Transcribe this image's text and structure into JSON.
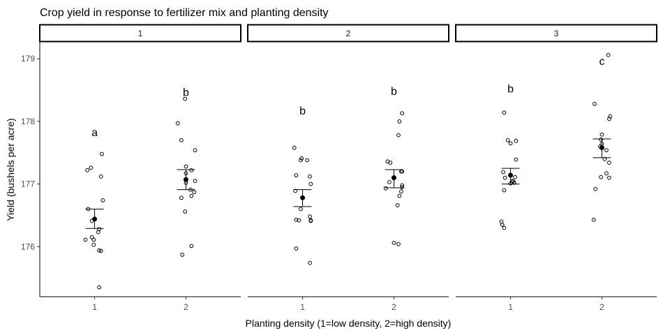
{
  "chart_data": {
    "type": "scatter",
    "title": "Crop yield in response to fertilizer mix and planting density",
    "xlabel": "Planting density (1=low density, 2=high density)",
    "ylabel": "Yield (bushels per acre)",
    "ylim": [
      175.2,
      179.27
    ],
    "xlim": [
      0.4,
      2.6
    ],
    "yticks": [
      176,
      177,
      178,
      179
    ],
    "xticks": [
      "1",
      "2"
    ],
    "grid": false,
    "panels": [
      {
        "strip": "1",
        "groups": [
          {
            "x": 1,
            "mean": 176.44,
            "se_low": 176.29,
            "se_high": 176.6,
            "letter": "a",
            "letter_y": 177.83,
            "points": [
              [
                0.08,
                177.48
              ],
              [
                -0.04,
                177.26
              ],
              [
                -0.08,
                177.22
              ],
              [
                0.07,
                177.12
              ],
              [
                0.09,
                176.74
              ],
              [
                -0.07,
                176.6
              ],
              [
                -0.03,
                176.41
              ],
              [
                0.05,
                176.28
              ],
              [
                0.04,
                176.23
              ],
              [
                -0.03,
                176.15
              ],
              [
                -0.1,
                176.11
              ],
              [
                -0.01,
                176.11
              ],
              [
                -0.01,
                176.03
              ],
              [
                0.05,
                175.94
              ],
              [
                0.07,
                175.93
              ],
              [
                0.05,
                175.35
              ]
            ]
          },
          {
            "x": 2,
            "mean": 177.07,
            "se_low": 176.91,
            "se_high": 177.23,
            "letter": "b",
            "letter_y": 178.47,
            "points": [
              [
                -0.01,
                178.36
              ],
              [
                -0.09,
                177.97
              ],
              [
                -0.05,
                177.7
              ],
              [
                0.1,
                177.54
              ],
              [
                0,
                177.28
              ],
              [
                0.06,
                177.22
              ],
              [
                0,
                177.17
              ],
              [
                0.1,
                177.05
              ],
              [
                0,
                177.02
              ],
              [
                0.05,
                176.91
              ],
              [
                0.09,
                176.87
              ],
              [
                0.06,
                176.81
              ],
              [
                -0.05,
                176.78
              ],
              [
                -0.01,
                176.56
              ],
              [
                0.06,
                176.01
              ],
              [
                -0.04,
                175.87
              ]
            ]
          }
        ]
      },
      {
        "strip": "2",
        "groups": [
          {
            "x": 1,
            "mean": 176.78,
            "se_low": 176.64,
            "se_high": 176.91,
            "letter": "b",
            "letter_y": 178.18,
            "points": [
              [
                -0.09,
                177.58
              ],
              [
                -0.01,
                177.41
              ],
              [
                -0.02,
                177.38
              ],
              [
                0.05,
                177.38
              ],
              [
                -0.07,
                177.14
              ],
              [
                0.08,
                177.12
              ],
              [
                0.09,
                177.0
              ],
              [
                -0.08,
                176.89
              ],
              [
                -0.02,
                176.6
              ],
              [
                0.08,
                176.48
              ],
              [
                -0.07,
                176.43
              ],
              [
                -0.04,
                176.42
              ],
              [
                0.09,
                176.42
              ],
              [
                0.09,
                176.41
              ],
              [
                -0.07,
                175.97
              ],
              [
                0.08,
                175.74
              ]
            ]
          },
          {
            "x": 2,
            "mean": 177.1,
            "se_low": 176.94,
            "se_high": 177.23,
            "letter": "b",
            "letter_y": 178.49,
            "points": [
              [
                0.09,
                178.13
              ],
              [
                0.06,
                178.0
              ],
              [
                0.05,
                177.78
              ],
              [
                -0.07,
                177.36
              ],
              [
                -0.04,
                177.34
              ],
              [
                0.08,
                177.2
              ],
              [
                0.09,
                177.2
              ],
              [
                -0.05,
                177.03
              ],
              [
                0.09,
                176.98
              ],
              [
                0.09,
                176.95
              ],
              [
                -0.09,
                176.93
              ],
              [
                0.08,
                176.88
              ],
              [
                0.06,
                176.81
              ],
              [
                0.04,
                176.66
              ],
              [
                0,
                176.06
              ],
              [
                0.05,
                176.04
              ]
            ]
          }
        ]
      },
      {
        "strip": "3",
        "groups": [
          {
            "x": 1,
            "mean": 177.14,
            "se_low": 177.0,
            "se_high": 177.25,
            "letter": "b",
            "letter_y": 178.53,
            "points": [
              [
                -0.07,
                178.14
              ],
              [
                -0.03,
                177.7
              ],
              [
                0,
                177.65
              ],
              [
                0.06,
                177.69
              ],
              [
                0.06,
                177.39
              ],
              [
                -0.08,
                177.19
              ],
              [
                -0.06,
                177.1
              ],
              [
                0.05,
                177.11
              ],
              [
                0.03,
                177.04
              ],
              [
                0,
                177.01
              ],
              [
                0.02,
                177.05
              ],
              [
                0.04,
                177.02
              ],
              [
                -0.07,
                176.9
              ],
              [
                -0.1,
                176.4
              ],
              [
                -0.09,
                176.35
              ],
              [
                -0.07,
                176.3
              ]
            ]
          },
          {
            "x": 2,
            "mean": 177.58,
            "se_low": 177.42,
            "se_high": 177.72,
            "letter": "c",
            "letter_y": 178.97,
            "points": [
              [
                0.07,
                179.06
              ],
              [
                -0.08,
                178.28
              ],
              [
                0.09,
                178.08
              ],
              [
                0.08,
                178.04
              ],
              [
                0,
                177.79
              ],
              [
                -0.01,
                177.71
              ],
              [
                0,
                177.64
              ],
              [
                -0.02,
                177.6
              ],
              [
                0.05,
                177.54
              ],
              [
                0.03,
                177.4
              ],
              [
                0.08,
                177.34
              ],
              [
                0.05,
                177.17
              ],
              [
                -0.01,
                177.11
              ],
              [
                0.08,
                177.1
              ],
              [
                -0.07,
                176.92
              ],
              [
                -0.09,
                176.43
              ]
            ]
          }
        ]
      }
    ]
  }
}
